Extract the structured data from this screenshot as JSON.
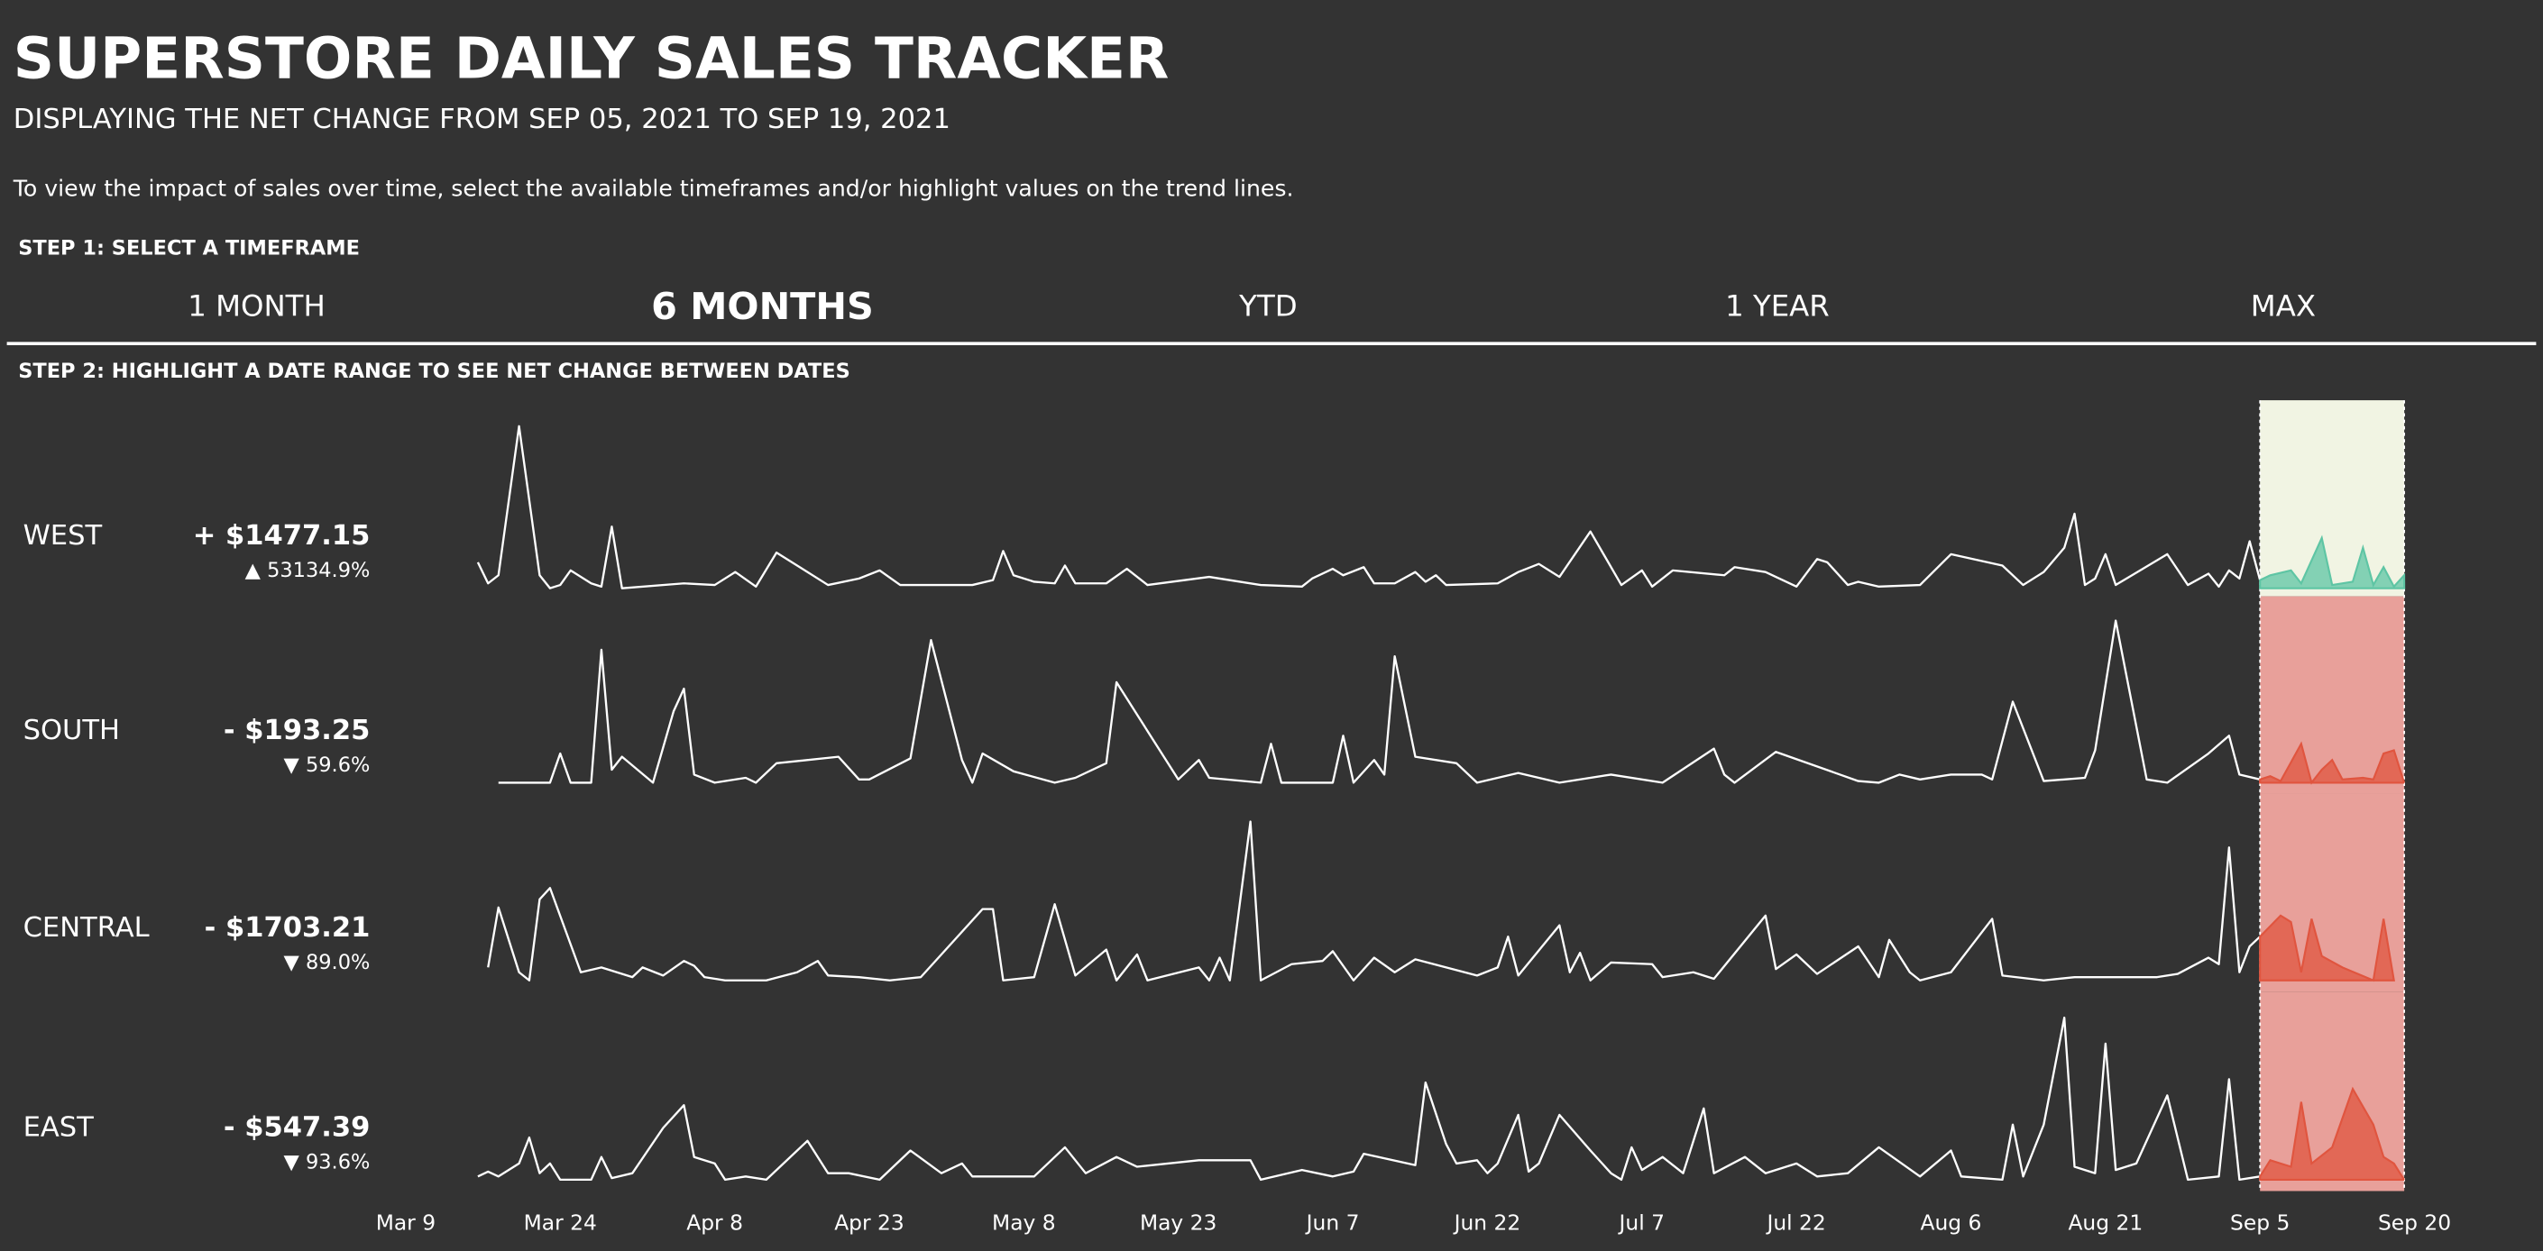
{
  "header": {
    "title": "SUPERSTORE DAILY SALES TRACKER",
    "subtitle": "DISPLAYING THE NET CHANGE FROM SEP 05, 2021 TO SEP 19, 2021",
    "instructions": "To view the impact of sales over time, select the available timeframes and/or highlight values on the trend lines."
  },
  "step1": {
    "label": "STEP 1: SELECT A TIMEFRAME",
    "timeframes": [
      "1 MONTH",
      "6 MONTHS",
      "YTD",
      "1 YEAR",
      "MAX"
    ],
    "selected": 1
  },
  "step2": {
    "label": "STEP 2: HIGHLIGHT A DATE RANGE TO SEE NET CHANGE BETWEEN DATES"
  },
  "chart_data": {
    "type": "line",
    "xlim": [
      68,
      263
    ],
    "xticks": [
      {
        "value": 68,
        "label": "Mar 9"
      },
      {
        "value": 83,
        "label": "Mar 24"
      },
      {
        "value": 98,
        "label": "Apr 8"
      },
      {
        "value": 113,
        "label": "Apr 23"
      },
      {
        "value": 128,
        "label": "May 8"
      },
      {
        "value": 143,
        "label": "May 23"
      },
      {
        "value": 158,
        "label": "Jun 7"
      },
      {
        "value": 173,
        "label": "Jun 22"
      },
      {
        "value": 188,
        "label": "Jul 7"
      },
      {
        "value": 203,
        "label": "Jul 22"
      },
      {
        "value": 218,
        "label": "Aug 6"
      },
      {
        "value": 233,
        "label": "Aug 21"
      },
      {
        "value": 248,
        "label": "Sep 5"
      },
      {
        "value": 263,
        "label": "Sep 20"
      }
    ],
    "ylim": [
      0,
      100
    ],
    "highlight": [
      248,
      262
    ],
    "line_color": "#ffffff",
    "series": [
      {
        "name": "WEST",
        "change_label": "+ $1477.15",
        "pct_label": "▲ 53134.9%",
        "color": "#5ec5a4",
        "highlight_color": "#f1f4e3",
        "x": [
          75,
          76,
          77,
          79,
          81,
          82,
          83,
          84,
          86,
          87,
          88,
          89,
          95,
          98,
          100,
          102,
          104,
          109,
          112,
          114,
          116,
          123,
          125,
          126,
          127,
          129,
          131,
          132,
          133,
          136,
          138,
          140,
          146,
          148,
          151,
          155,
          156,
          158,
          159,
          161,
          162,
          164,
          166,
          167,
          168,
          169,
          174,
          176,
          178,
          180,
          183,
          186,
          188,
          189,
          191,
          196,
          197,
          200,
          203,
          205,
          206,
          208,
          209,
          211,
          215,
          218,
          223,
          225,
          227,
          229,
          230,
          231,
          232,
          233,
          234,
          239,
          241,
          243,
          244,
          245,
          246,
          247,
          248,
          249,
          251,
          252,
          254,
          255,
          257,
          258,
          259,
          260,
          261,
          262
        ],
        "values": [
          16,
          3,
          8,
          100,
          8,
          0,
          2,
          11,
          3,
          1,
          38,
          0,
          3,
          2,
          10,
          1,
          22,
          2,
          6,
          11,
          2,
          2,
          5,
          23,
          8,
          4,
          3,
          14,
          3,
          3,
          12,
          2,
          7,
          5,
          2,
          1,
          6,
          12,
          8,
          13,
          3,
          3,
          10,
          4,
          8,
          2,
          3,
          10,
          15,
          7,
          35,
          2,
          11,
          1,
          11,
          8,
          13,
          10,
          1,
          18,
          16,
          2,
          4,
          1,
          2,
          21,
          14,
          2,
          10,
          25,
          46,
          2,
          6,
          21,
          2,
          21,
          2,
          9,
          1,
          11,
          6,
          29,
          5,
          8,
          11,
          3,
          31,
          2,
          4,
          25,
          2,
          13,
          1,
          8
        ]
      },
      {
        "name": "SOUTH",
        "change_label": "- $193.25",
        "pct_label": "▼ 59.6%",
        "color": "#e0553f",
        "highlight_color": "#e8a09a",
        "x": [
          77,
          82,
          83,
          84,
          86,
          87,
          88,
          89,
          92,
          94,
          95,
          96,
          98,
          101,
          102,
          104,
          110,
          112,
          113,
          117,
          119,
          122,
          123,
          124,
          127,
          131,
          133,
          136,
          137,
          143,
          145,
          146,
          151,
          152,
          153,
          158,
          159,
          160,
          162,
          163,
          164,
          166,
          170,
          172,
          176,
          180,
          185,
          190,
          195,
          196,
          197,
          201,
          209,
          211,
          213,
          215,
          218,
          221,
          222,
          224,
          227,
          231,
          232,
          234,
          237,
          239,
          243,
          245,
          246,
          248,
          249,
          250,
          252,
          253,
          254,
          255,
          256,
          258,
          259,
          260,
          261,
          262
        ],
        "values": [
          0,
          0,
          18,
          0,
          0,
          82,
          8,
          16,
          0,
          44,
          58,
          5,
          0,
          3,
          0,
          12,
          16,
          2,
          2,
          15,
          88,
          14,
          0,
          18,
          7,
          0,
          3,
          12,
          62,
          2,
          14,
          3,
          0,
          24,
          0,
          0,
          29,
          0,
          14,
          5,
          78,
          16,
          12,
          0,
          6,
          0,
          5,
          0,
          21,
          5,
          0,
          19,
          1,
          0,
          5,
          2,
          5,
          5,
          2,
          50,
          1,
          3,
          20,
          100,
          2,
          0,
          18,
          29,
          5,
          2,
          4,
          1,
          24,
          0,
          8,
          14,
          2,
          3,
          2,
          18,
          20,
          0
        ]
      },
      {
        "name": "CENTRAL",
        "change_label": "- $1703.21",
        "pct_label": "▼ 89.0%",
        "color": "#e0553f",
        "highlight_color": "#e8a09a",
        "x": [
          76,
          77,
          79,
          80,
          81,
          82,
          85,
          87,
          90,
          91,
          93,
          95,
          96,
          97,
          99,
          103,
          106,
          108,
          109,
          112,
          115,
          118,
          124,
          125,
          126,
          129,
          131,
          133,
          136,
          137,
          139,
          140,
          145,
          146,
          147,
          148,
          150,
          151,
          154,
          157,
          158,
          160,
          162,
          164,
          166,
          172,
          174,
          175,
          176,
          180,
          181,
          182,
          183,
          185,
          189,
          190,
          193,
          195,
          200,
          201,
          203,
          205,
          209,
          211,
          212,
          214,
          215,
          218,
          222,
          223,
          227,
          230,
          238,
          240,
          243,
          244,
          245,
          246,
          247,
          248,
          250,
          251,
          252,
          253,
          254,
          256,
          259,
          260,
          261
        ],
        "values": [
          8,
          45,
          5,
          0,
          50,
          57,
          5,
          8,
          2,
          8,
          3,
          12,
          9,
          2,
          0,
          0,
          5,
          12,
          3,
          2,
          0,
          2,
          44,
          44,
          0,
          2,
          47,
          3,
          19,
          0,
          16,
          0,
          8,
          0,
          14,
          0,
          98,
          0,
          10,
          12,
          18,
          0,
          14,
          5,
          13,
          3,
          8,
          27,
          3,
          34,
          5,
          17,
          0,
          11,
          10,
          2,
          5,
          1,
          40,
          7,
          16,
          4,
          21,
          2,
          25,
          5,
          0,
          5,
          38,
          3,
          0,
          2,
          2,
          4,
          14,
          10,
          82,
          5,
          21,
          27,
          40,
          36,
          5,
          38,
          15,
          8,
          0,
          38,
          0
        ]
      },
      {
        "name": "EAST",
        "change_label": "- $547.39",
        "pct_label": "▼ 93.6%",
        "color": "#e0553f",
        "highlight_color": "#e8a09a",
        "x": [
          75,
          76,
          77,
          79,
          80,
          81,
          82,
          83,
          86,
          87,
          88,
          90,
          93,
          95,
          96,
          98,
          99,
          101,
          103,
          107,
          109,
          111,
          114,
          117,
          120,
          122,
          123,
          129,
          132,
          134,
          137,
          139,
          145,
          150,
          151,
          155,
          158,
          160,
          161,
          166,
          167,
          169,
          170,
          172,
          173,
          174,
          176,
          177,
          178,
          180,
          183,
          185,
          186,
          187,
          188,
          190,
          192,
          194,
          195,
          198,
          200,
          203,
          205,
          208,
          211,
          215,
          218,
          219,
          223,
          224,
          225,
          227,
          229,
          230,
          232,
          233,
          234,
          236,
          239,
          241,
          244,
          245,
          246,
          248,
          249,
          251,
          252,
          253,
          255,
          257,
          259,
          260,
          261,
          262
        ],
        "values": [
          2,
          5,
          2,
          10,
          26,
          4,
          10,
          0,
          0,
          14,
          1,
          4,
          32,
          46,
          14,
          10,
          0,
          2,
          0,
          24,
          4,
          4,
          0,
          18,
          4,
          10,
          2,
          2,
          20,
          4,
          14,
          8,
          12,
          12,
          0,
          6,
          2,
          5,
          16,
          9,
          60,
          22,
          10,
          12,
          4,
          10,
          40,
          5,
          10,
          40,
          18,
          4,
          0,
          20,
          6,
          14,
          4,
          44,
          4,
          14,
          4,
          10,
          2,
          4,
          20,
          2,
          18,
          2,
          0,
          34,
          2,
          34,
          100,
          8,
          4,
          84,
          6,
          10,
          52,
          0,
          2,
          62,
          0,
          2,
          12,
          8,
          48,
          10,
          20,
          56,
          34,
          14,
          10,
          0
        ]
      }
    ]
  }
}
